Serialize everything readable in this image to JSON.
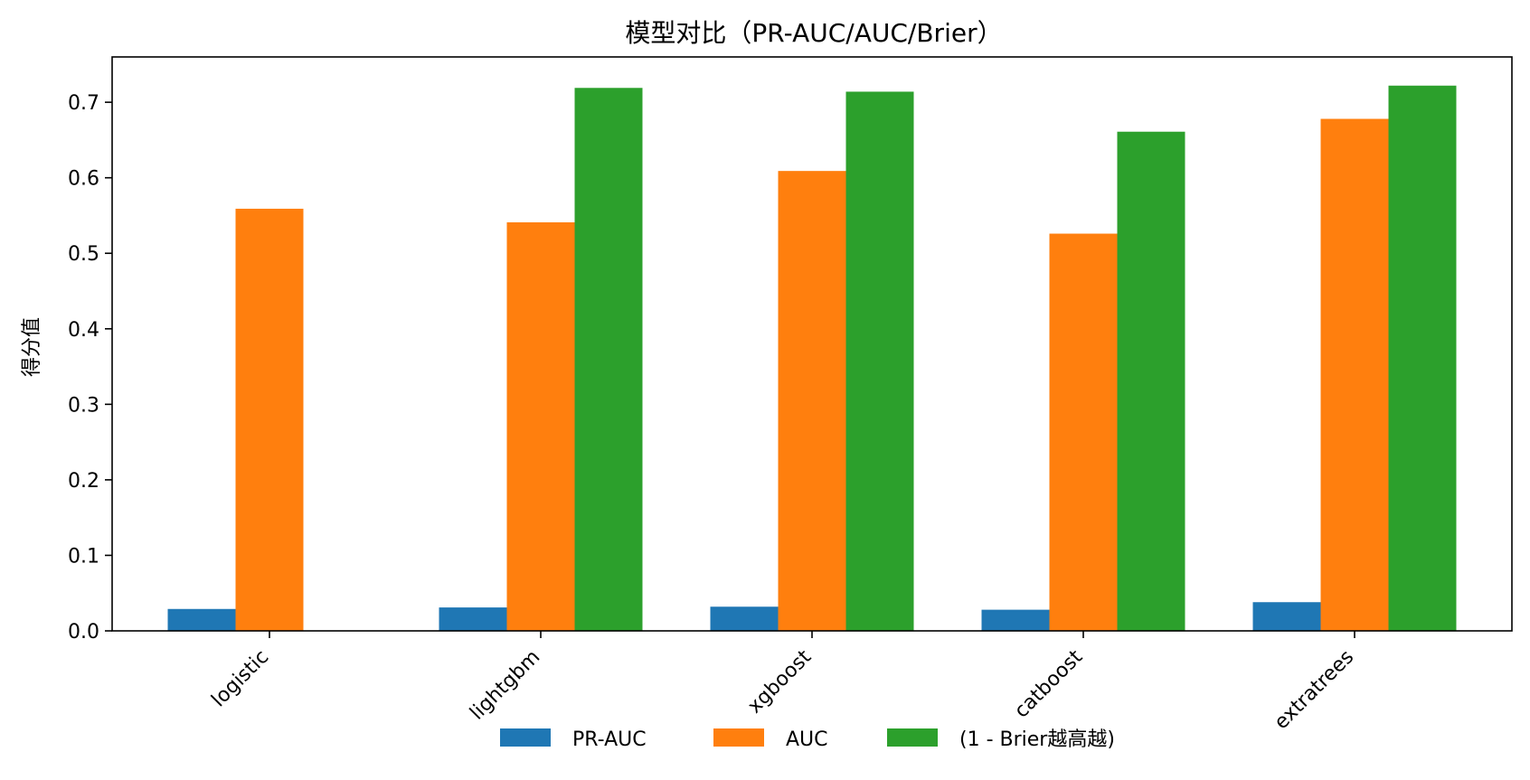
{
  "chart_data": {
    "type": "bar",
    "title": "模型对比（PR-AUC/AUC/Brier）",
    "xlabel": "",
    "ylabel": "得分值",
    "ylim": [
      0,
      0.76
    ],
    "yticks": [
      "0.0",
      "0.1",
      "0.2",
      "0.3",
      "0.4",
      "0.5",
      "0.6",
      "0.7"
    ],
    "categories": [
      "logistic",
      "lightgbm",
      "xgboost",
      "catboost",
      "extratrees"
    ],
    "series": [
      {
        "name": "PR-AUC",
        "color": "#1f77b4",
        "values": [
          0.029,
          0.031,
          0.032,
          0.028,
          0.038
        ]
      },
      {
        "name": "AUC",
        "color": "#ff7f0e",
        "values": [
          0.559,
          0.541,
          0.609,
          0.526,
          0.678
        ]
      },
      {
        "name": "(1 - Brier越高越)",
        "color": "#2ca02c",
        "values": [
          null,
          0.719,
          0.714,
          0.661,
          0.722
        ]
      }
    ],
    "grid": false,
    "legend_position": "bottom-center"
  }
}
